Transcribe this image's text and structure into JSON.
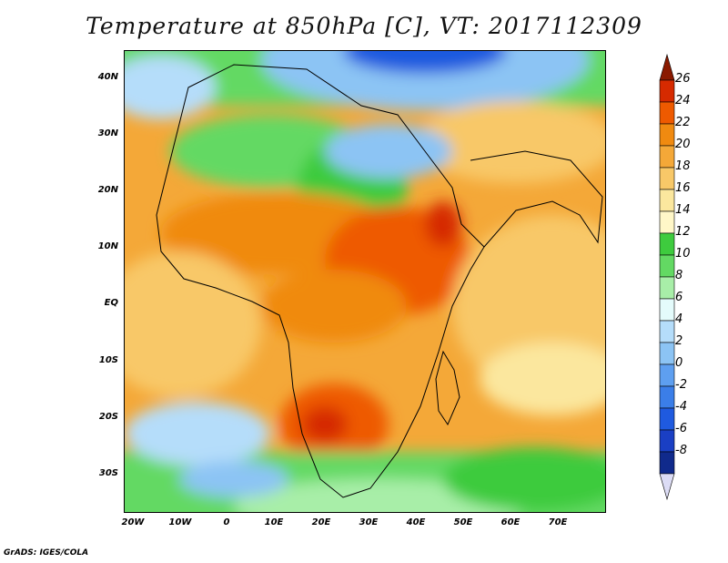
{
  "title": "Temperature at 850hPa [C], VT: 2017112309",
  "lat_ticks": [
    "40N",
    "30N",
    "20N",
    "10N",
    "EQ",
    "10S",
    "20S",
    "30S"
  ],
  "lon_ticks": [
    "20W",
    "10W",
    "0",
    "10E",
    "20E",
    "30E",
    "40E",
    "50E",
    "60E",
    "70E"
  ],
  "colorbar": {
    "labels": [
      "26",
      "24",
      "22",
      "20",
      "18",
      "16",
      "14",
      "12",
      "10",
      "8",
      "6",
      "4",
      "2",
      "0",
      "-2",
      "-4",
      "-6",
      "-8"
    ],
    "colors": [
      "#8a1a00",
      "#d62a00",
      "#ee5a00",
      "#f08a10",
      "#f4a838",
      "#f8c868",
      "#fbe79e",
      "#fff7c8",
      "#3ecb3e",
      "#63d963",
      "#a8eea8",
      "#e4fbfb",
      "#b5ddfa",
      "#8cc4f4",
      "#5e9ff0",
      "#3b7ee8",
      "#1f5adf",
      "#1a3fc4",
      "#102a8c",
      "#dcdcf5"
    ]
  },
  "credit": "GrADS: IGES/COLA"
}
